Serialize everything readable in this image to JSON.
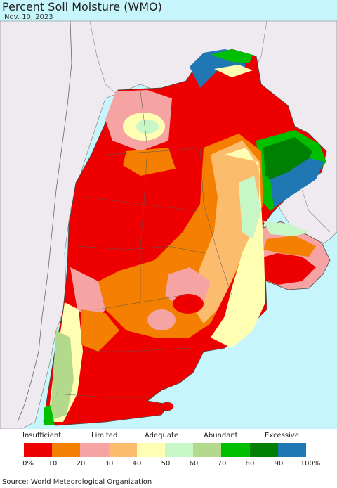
{
  "header": {
    "title": "Percent Soil Moisture (WMO)",
    "date": "Nov. 10, 2023"
  },
  "legend": {
    "category_labels": [
      "Insufficient",
      "Limited",
      "Adequate",
      "Abundant",
      "Excessive"
    ],
    "tick_labels": [
      "0%",
      "10",
      "20",
      "30",
      "40",
      "50",
      "60",
      "70",
      "80",
      "90",
      "100%"
    ],
    "colors": [
      "#ee0000",
      "#f57f00",
      "#f5a3a3",
      "#fbbd6d",
      "#ffffb3",
      "#c7f7c7",
      "#b2d98c",
      "#00bf00",
      "#008000",
      "#1f78b4"
    ]
  },
  "footer": {
    "source": "Source: World Meteorological Organization"
  },
  "colors": {
    "ocean": "#c6f5fb",
    "neighbor_land": "#eeeaf0",
    "border": "#555555"
  }
}
